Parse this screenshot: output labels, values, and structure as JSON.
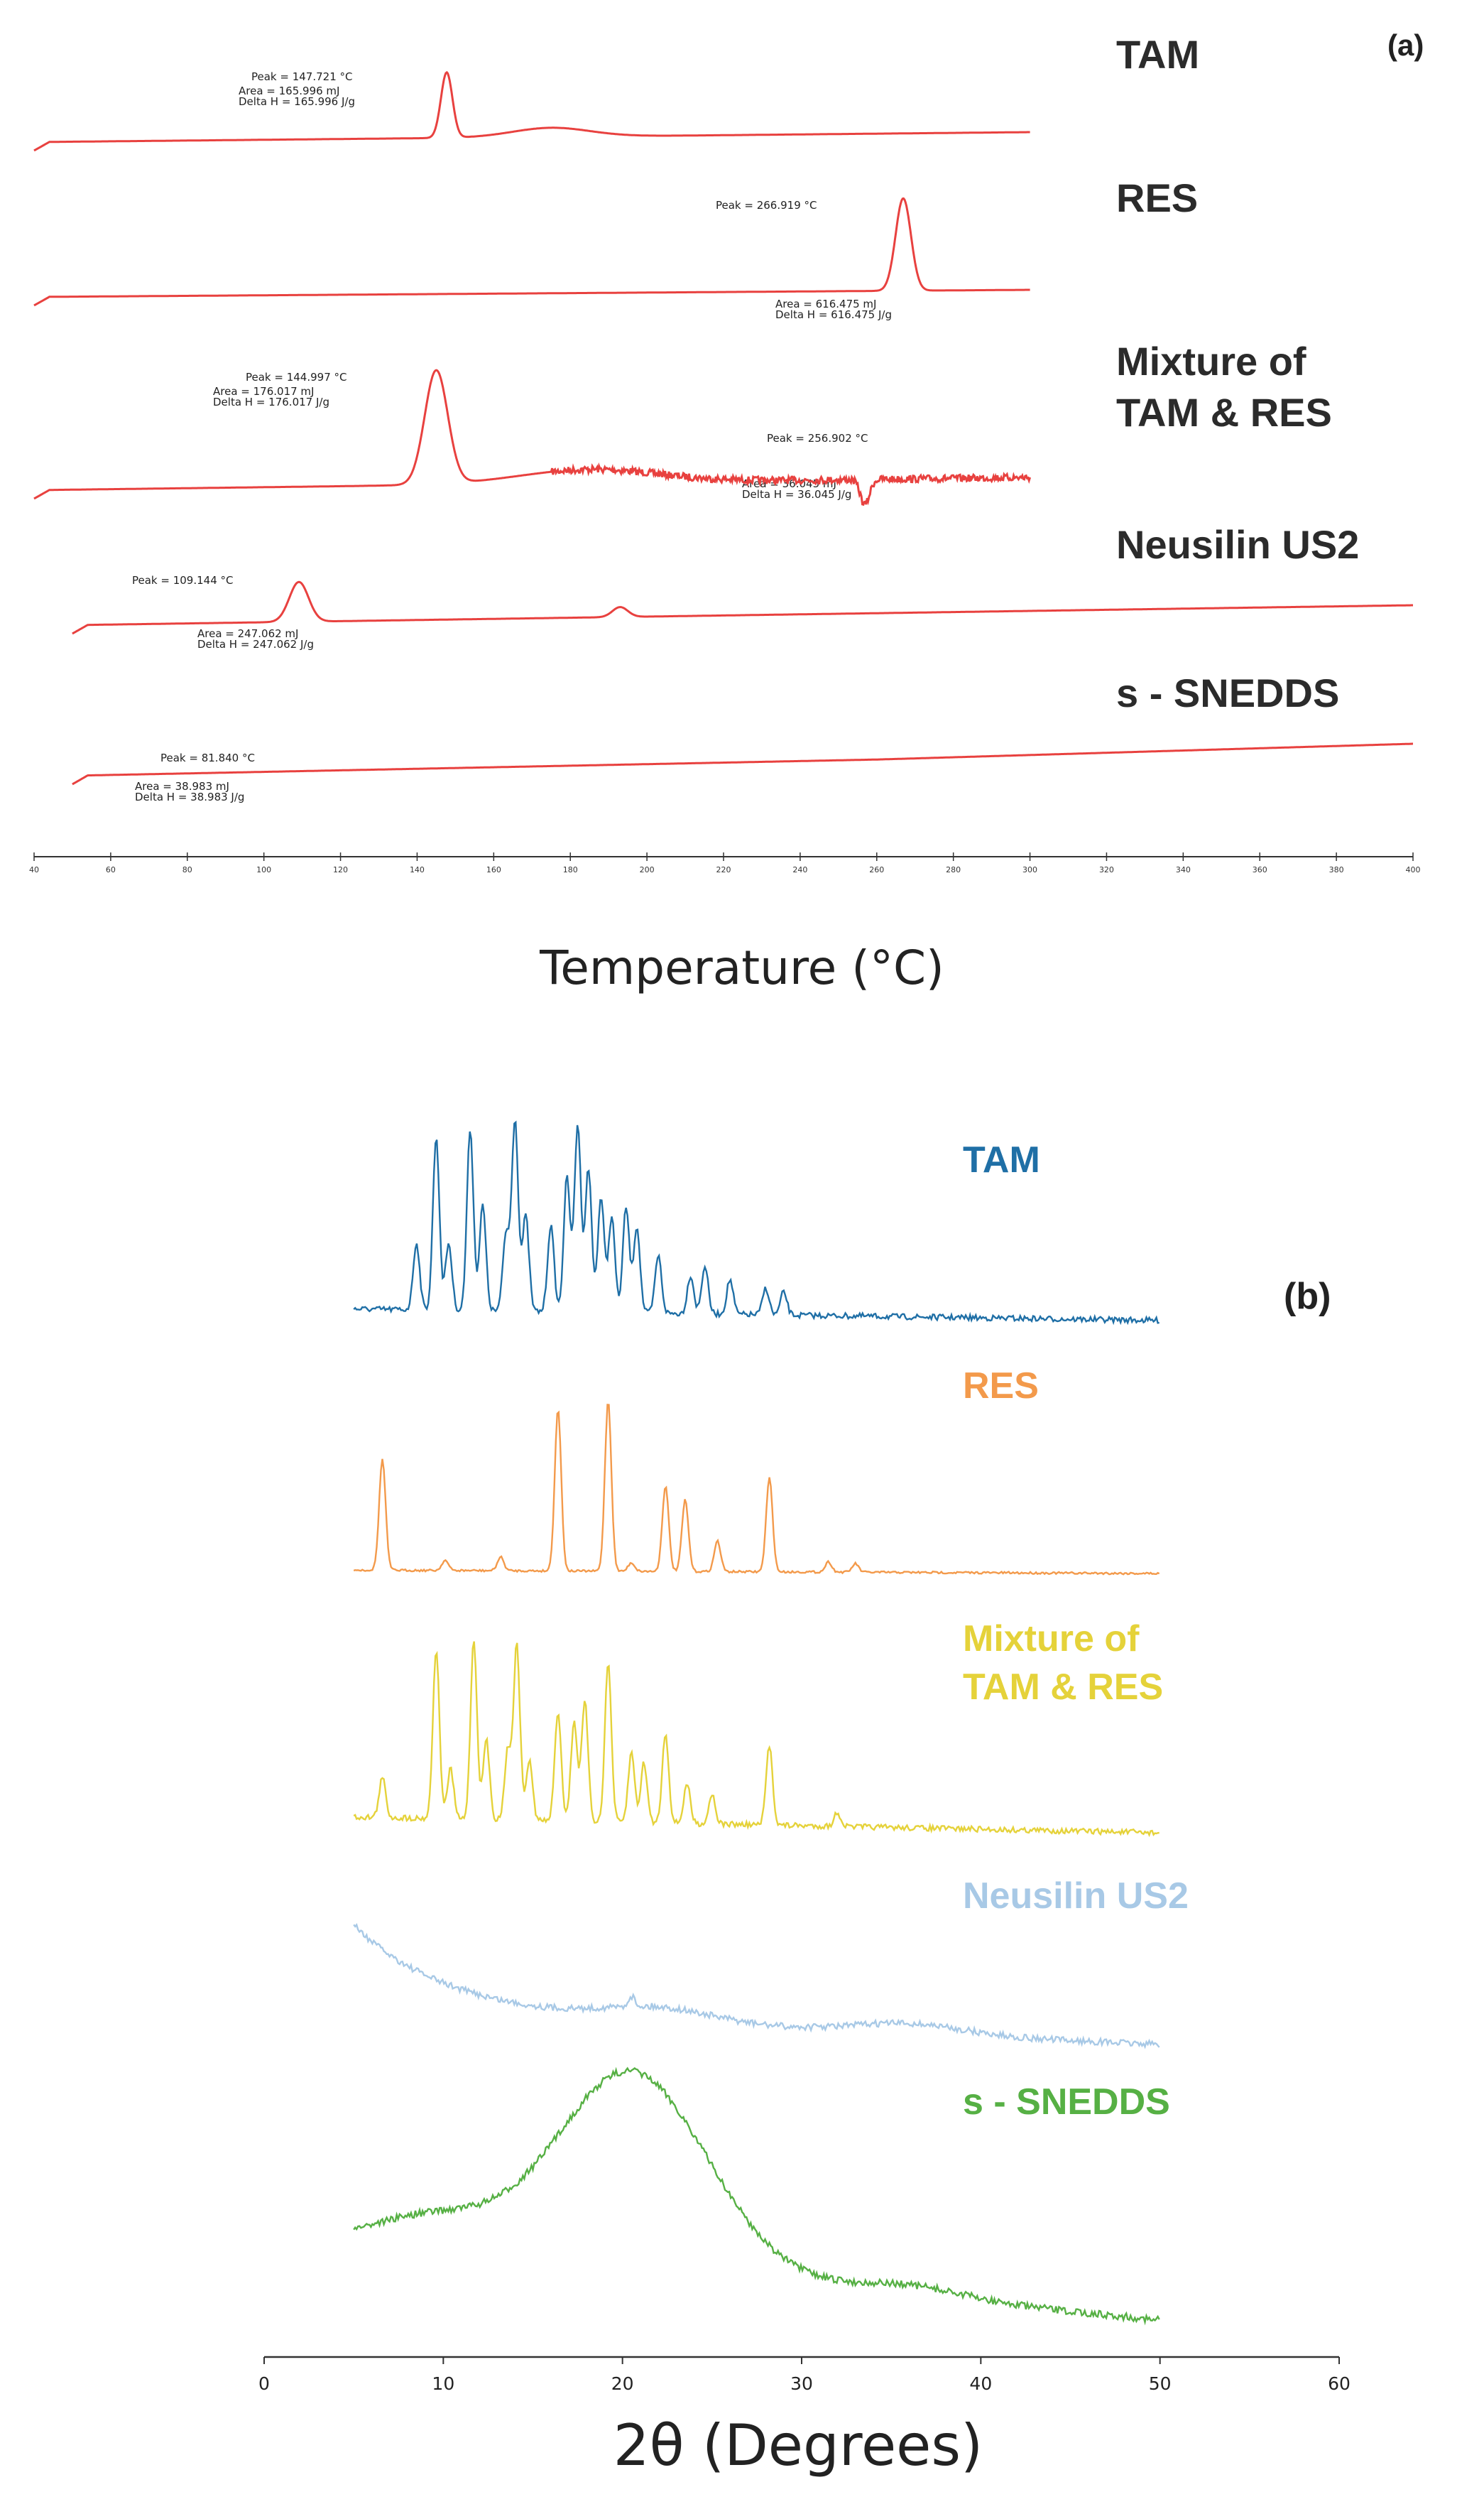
{
  "chart_data": [
    {
      "panel": "(a)",
      "type": "line",
      "subtype": "DSC thermogram",
      "xlabel": "Temperature (°C)",
      "xlim": [
        40,
        400
      ],
      "x_ticks": [
        40,
        60,
        80,
        100,
        120,
        140,
        160,
        180,
        200,
        220,
        240,
        260,
        280,
        300,
        320,
        340,
        360,
        380,
        400
      ],
      "line_color": "#e8413f",
      "series": [
        {
          "name": "TAM",
          "x_start": 40,
          "x_end": 300,
          "peaks": [
            {
              "x": 147.721,
              "h": 1.0,
              "w": 1.5
            }
          ],
          "humps": [
            {
              "x": 175,
              "h": 0.14,
              "w": 10
            }
          ],
          "annotations": [
            {
              "text": "Peak = 147.721 °C",
              "kind": "peak"
            },
            {
              "text": "Area = 165.996 mJ",
              "kind": "area"
            },
            {
              "text": "Delta H = 165.996 J/g",
              "kind": "dh"
            }
          ]
        },
        {
          "name": "RES",
          "x_start": 40,
          "x_end": 300,
          "peaks": [
            {
              "x": 266.919,
              "h": 1.0,
              "w": 2.0
            }
          ],
          "humps": [],
          "annotations": [
            {
              "text": "Peak = 266.919 °C",
              "kind": "peak"
            },
            {
              "text": "Area = 616.475 mJ",
              "kind": "area"
            },
            {
              "text": "Delta H = 616.475 J/g",
              "kind": "dh"
            }
          ]
        },
        {
          "name": "Mixture of TAM & RES",
          "x_start": 40,
          "x_end": 300,
          "peaks": [
            {
              "x": 144.997,
              "h": 1.0,
              "w": 3.0
            },
            {
              "x": 256.902,
              "h": -0.22,
              "w": 1.2
            }
          ],
          "humps": [
            {
              "x": 185,
              "h": 0.12,
              "w": 18
            }
          ],
          "annotations": [
            {
              "text": "Peak = 144.997 °C",
              "kind": "peak"
            },
            {
              "text": "Area = 176.017 mJ",
              "kind": "area"
            },
            {
              "text": "Delta H = 176.017 J/g",
              "kind": "dh"
            },
            {
              "text": "Peak = 256.902 °C",
              "kind": "peak"
            },
            {
              "text": "Area = 36.045 mJ",
              "kind": "area"
            },
            {
              "text": "Delta H = 36.045 J/g",
              "kind": "dh"
            }
          ]
        },
        {
          "name": "Neusilin US2",
          "x_start": 50,
          "x_end": 400,
          "peaks": [
            {
              "x": 109.144,
              "h": 0.4,
              "w": 2.5
            },
            {
              "x": 193,
              "h": 0.1,
              "w": 2.0
            }
          ],
          "humps": [],
          "annotations": [
            {
              "text": "Peak = 109.144 °C",
              "kind": "peak"
            },
            {
              "text": "Area = 247.062 mJ",
              "kind": "area"
            },
            {
              "text": "Delta H = 247.062 J/g",
              "kind": "dh"
            }
          ]
        },
        {
          "name": "s - SNEDDS",
          "x_start": 50,
          "x_end": 400,
          "peaks": [],
          "humps": [],
          "annotations": [
            {
              "text": "Peak = 81.840 °C",
              "kind": "peak"
            },
            {
              "text": "Area = 38.983 mJ",
              "kind": "area"
            },
            {
              "text": "Delta H = 38.983 J/g",
              "kind": "dh"
            }
          ]
        }
      ]
    },
    {
      "panel": "(b)",
      "type": "line",
      "subtype": "X-ray diffractogram",
      "xlabel": "2θ (Degrees)",
      "xlim": [
        0,
        60
      ],
      "x_ticks": [
        0,
        10,
        20,
        30,
        40,
        50,
        60
      ],
      "series": [
        {
          "name": "TAM",
          "color": "#1f6fa6",
          "x_start": 5,
          "x_end": 50,
          "peaks": [
            [
              8.5,
              0.35
            ],
            [
              9.6,
              0.9
            ],
            [
              10.3,
              0.35
            ],
            [
              11.5,
              0.95
            ],
            [
              12.2,
              0.55
            ],
            [
              13.5,
              0.4
            ],
            [
              14.0,
              1.0
            ],
            [
              14.6,
              0.5
            ],
            [
              16.0,
              0.45
            ],
            [
              16.9,
              0.7
            ],
            [
              17.5,
              0.98
            ],
            [
              18.1,
              0.75
            ],
            [
              18.8,
              0.6
            ],
            [
              19.4,
              0.5
            ],
            [
              20.2,
              0.55
            ],
            [
              20.8,
              0.45
            ],
            [
              22.0,
              0.3
            ],
            [
              23.8,
              0.2
            ],
            [
              24.6,
              0.25
            ],
            [
              26.0,
              0.18
            ],
            [
              28.0,
              0.14
            ],
            [
              29.0,
              0.12
            ]
          ],
          "baseline": [
            0.12,
            0.06
          ]
        },
        {
          "name": "RES",
          "color": "#f39a4b",
          "x_start": 5,
          "x_end": 50,
          "peaks": [
            [
              6.6,
              0.65
            ],
            [
              10.1,
              0.06
            ],
            [
              13.2,
              0.08
            ],
            [
              16.4,
              0.95
            ],
            [
              19.2,
              1.0
            ],
            [
              20.5,
              0.05
            ],
            [
              22.4,
              0.5
            ],
            [
              23.5,
              0.42
            ],
            [
              25.3,
              0.18
            ],
            [
              28.2,
              0.55
            ],
            [
              31.5,
              0.06
            ],
            [
              33.0,
              0.05
            ]
          ],
          "baseline": [
            0.02,
            0.0
          ]
        },
        {
          "name": "Mixture of TAM & RES",
          "color": "#e5d23a",
          "x_start": 5,
          "x_end": 50,
          "peaks": [
            [
              6.6,
              0.2
            ],
            [
              9.6,
              0.85
            ],
            [
              10.4,
              0.25
            ],
            [
              11.7,
              0.9
            ],
            [
              12.4,
              0.4
            ],
            [
              13.6,
              0.35
            ],
            [
              14.1,
              0.88
            ],
            [
              14.8,
              0.3
            ],
            [
              16.4,
              0.55
            ],
            [
              17.3,
              0.5
            ],
            [
              17.9,
              0.6
            ],
            [
              19.2,
              0.8
            ],
            [
              20.5,
              0.35
            ],
            [
              21.2,
              0.3
            ],
            [
              22.4,
              0.45
            ],
            [
              23.6,
              0.2
            ],
            [
              25.0,
              0.15
            ],
            [
              28.2,
              0.4
            ],
            [
              32.0,
              0.07
            ]
          ],
          "baseline": [
            0.08,
            0.0
          ]
        },
        {
          "name": "Neusilin US2",
          "color": "#a8c9e6",
          "x_start": 5,
          "x_end": 50,
          "peaks": [
            [
              20.5,
              0.06
            ]
          ],
          "humps": [
            [
              22,
              0.08,
              3
            ],
            [
              36,
              0.06,
              3
            ]
          ],
          "baseline": [
            0.55,
            0.0
          ]
        },
        {
          "name": "s - SNEDDS",
          "color": "#56b044",
          "x_start": 5,
          "x_end": 50,
          "peaks": [],
          "humps": [
            [
              20.5,
              0.9,
              4.2
            ],
            [
              9.5,
              0.15,
              3.5
            ],
            [
              36,
              0.05,
              3
            ]
          ],
          "baseline": [
            0.35,
            0.0
          ]
        }
      ]
    }
  ],
  "labels": {
    "panel_a": "(a)",
    "panel_b": "(b)",
    "dsc": {
      "tam": "TAM",
      "res": "RES",
      "mix_line1": "Mixture of",
      "mix_line2": "TAM & RES",
      "neu": "Neusilin US2",
      "sne": "s - SNEDDS"
    },
    "xrd": {
      "tam": "TAM",
      "res": "RES",
      "mix_line1": "Mixture of",
      "mix_line2": "TAM & RES",
      "neu": "Neusilin US2",
      "sne": "s - SNEDDS"
    },
    "temp_axis": "Temperature (°C)",
    "theta_axis": "2θ (Degrees)"
  },
  "colors": {
    "dsc_line": "#e8413f",
    "tam": "#1f6fa6",
    "res": "#f39a4b",
    "mix": "#e5d23a",
    "neu": "#a8c9e6",
    "sne": "#56b044"
  }
}
